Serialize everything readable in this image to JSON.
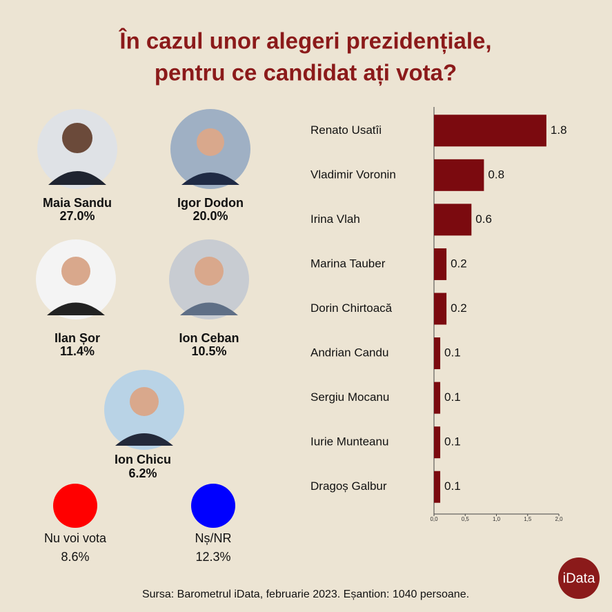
{
  "title": [
    "În cazul unor alegeri prezidențiale,",
    "pentru ce candidat ați vota?"
  ],
  "candidates": [
    {
      "name": "Maia Sandu",
      "percent": "27.0%"
    },
    {
      "name": "Igor Dodon",
      "percent": "20.0%"
    },
    {
      "name": "Ilan Șor",
      "percent": "11.4%"
    },
    {
      "name": "Ion Ceban",
      "percent": "10.5%"
    },
    {
      "name": "Ion Chicu",
      "percent": "6.2%"
    },
    {
      "name": "Nu voi vota",
      "percent": "8.6%"
    },
    {
      "name": "Nș/NR",
      "percent": "12.3%"
    }
  ],
  "chart_data": {
    "type": "hbar",
    "categories": [
      "Renato Usatîi",
      "Vladimir Voronin",
      "Irina Vlah",
      "Marina Tauber",
      "Dorin Chirtoacă",
      "Andrian Candu",
      "Sergiu Mocanu",
      "Iurie Munteanu",
      "Dragoș Galbur"
    ],
    "values": [
      1.8,
      0.8,
      0.6,
      0.2,
      0.2,
      0.1,
      0.1,
      0.1,
      0.1
    ],
    "color": "#7b0a0f",
    "xlim": [
      0,
      2
    ],
    "xticks": [
      {
        "value": 0,
        "label": "0,0"
      },
      {
        "value": 0.5,
        "label": "0,5"
      },
      {
        "value": 1,
        "label": "1,0"
      },
      {
        "value": 1.5,
        "label": "1,5"
      },
      {
        "value": 2,
        "label": "2,0"
      }
    ]
  },
  "source": "Sursa: Barometrul iData, februarie 2023. Eșantion: 1040 persoane.",
  "logo": "iData"
}
